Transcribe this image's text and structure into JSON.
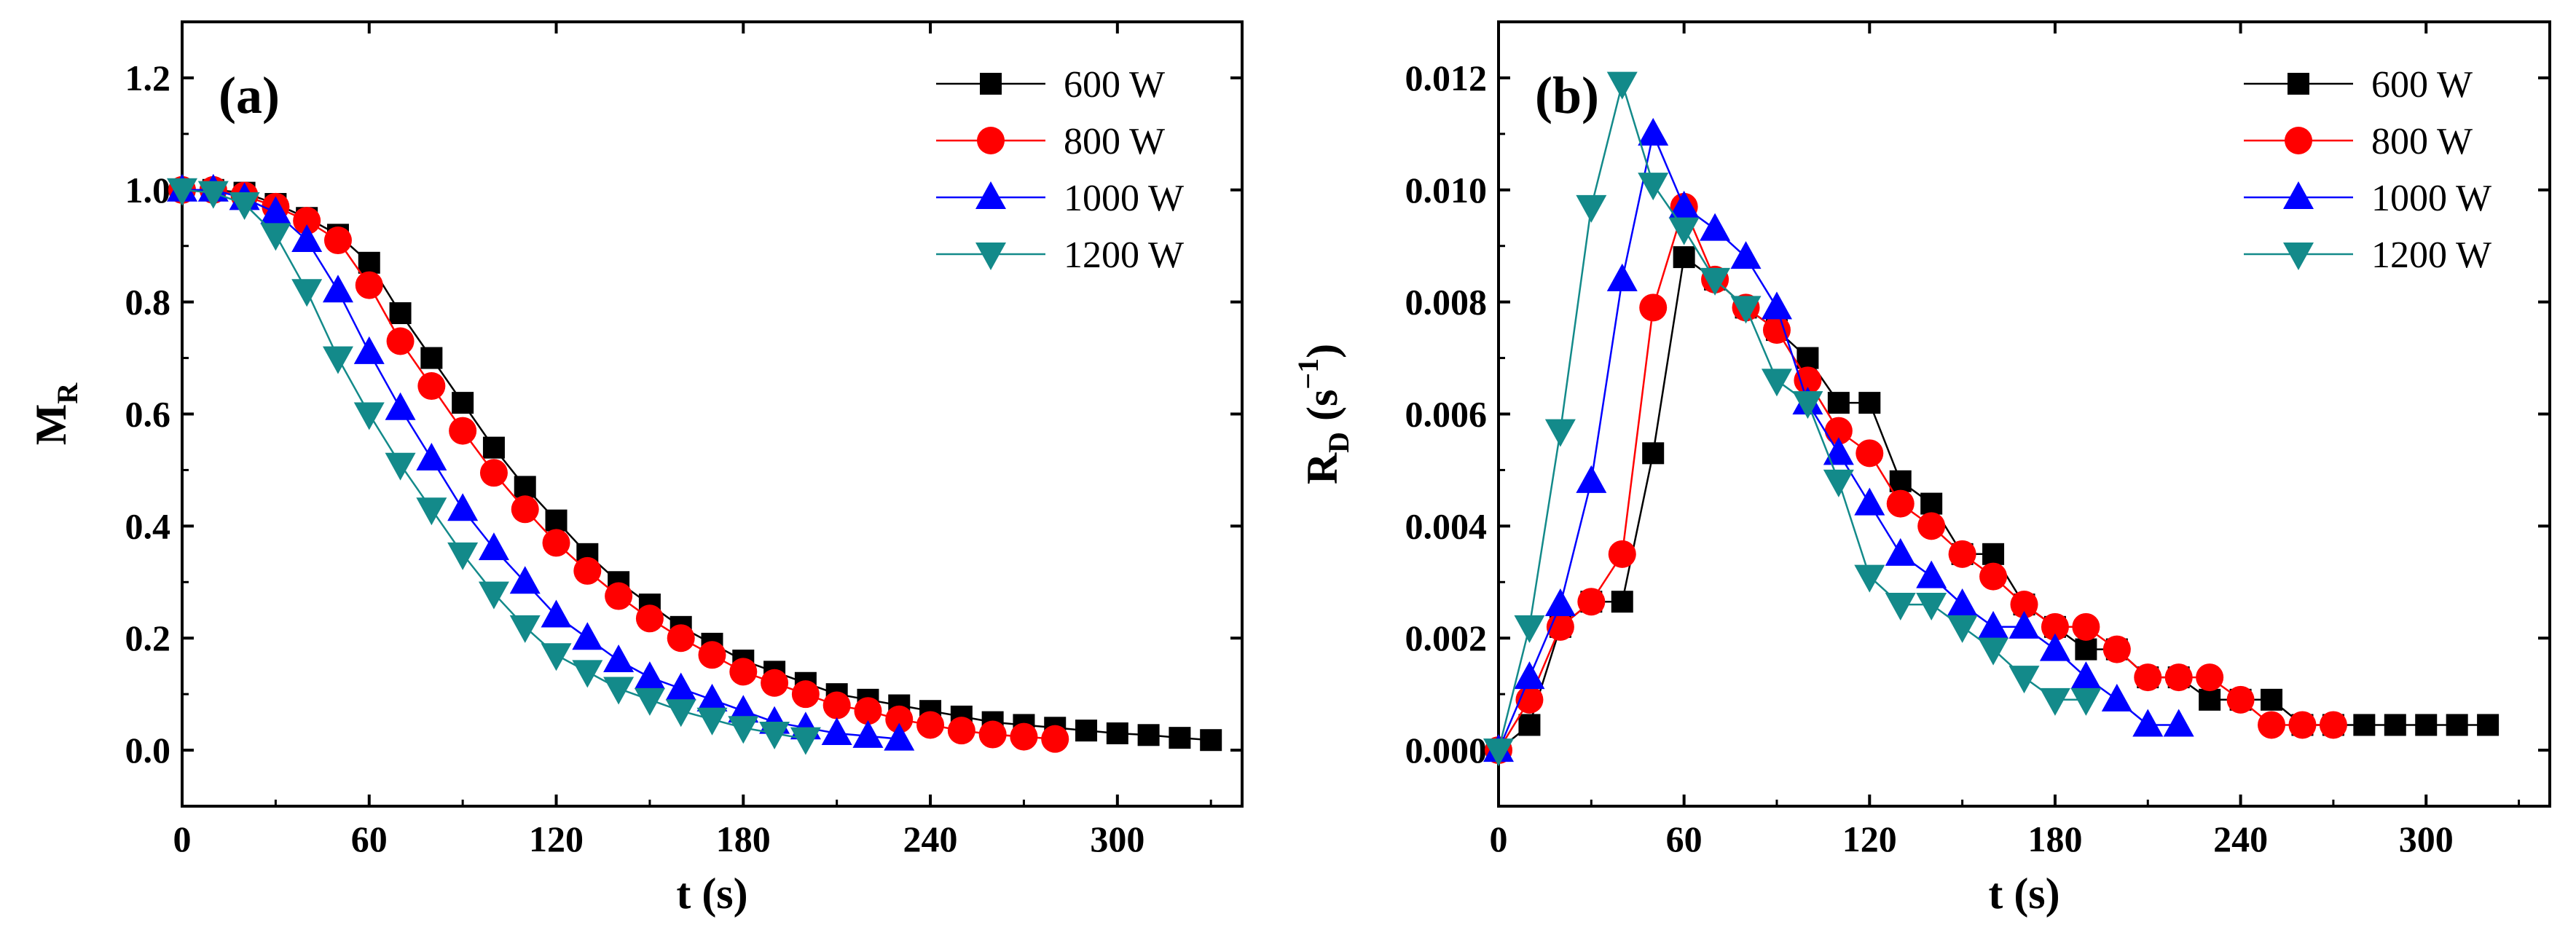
{
  "chart_data": [
    {
      "panel": "(a)",
      "type": "line",
      "xlabel": "t (s)",
      "ylabel": {
        "main": "M",
        "sub": "R"
      },
      "xlim": [
        0,
        340
      ],
      "ylim": [
        -0.1,
        1.3
      ],
      "xticks": [
        0,
        60,
        120,
        180,
        240,
        300
      ],
      "yticks": [
        0.0,
        0.2,
        0.4,
        0.6,
        0.8,
        1.0,
        1.2
      ],
      "ytick_labels": [
        "0.0",
        "0.2",
        "0.4",
        "0.6",
        "0.8",
        "1.0",
        "1.2"
      ],
      "legend_position": "top-right",
      "series": [
        {
          "name": "600 W",
          "color": "#000000",
          "marker": "square",
          "x": [
            0,
            10,
            20,
            30,
            40,
            50,
            60,
            70,
            80,
            90,
            100,
            110,
            120,
            130,
            140,
            150,
            160,
            170,
            180,
            190,
            200,
            210,
            220,
            230,
            240,
            250,
            260,
            270,
            280,
            290,
            300,
            310,
            320,
            330
          ],
          "y": [
            1.0,
            1.0,
            0.995,
            0.975,
            0.95,
            0.92,
            0.87,
            0.78,
            0.7,
            0.62,
            0.54,
            0.47,
            0.41,
            0.35,
            0.3,
            0.26,
            0.22,
            0.19,
            0.16,
            0.14,
            0.12,
            0.1,
            0.09,
            0.08,
            0.07,
            0.06,
            0.05,
            0.045,
            0.04,
            0.035,
            0.03,
            0.027,
            0.022,
            0.018
          ]
        },
        {
          "name": "800 W",
          "color": "#ff0000",
          "marker": "circle",
          "x": [
            0,
            10,
            20,
            30,
            40,
            50,
            60,
            70,
            80,
            90,
            100,
            110,
            120,
            130,
            140,
            150,
            160,
            170,
            180,
            190,
            200,
            210,
            220,
            230,
            240,
            250,
            260,
            270,
            280
          ],
          "y": [
            1.0,
            1.0,
            0.99,
            0.97,
            0.945,
            0.91,
            0.83,
            0.73,
            0.65,
            0.57,
            0.495,
            0.43,
            0.37,
            0.32,
            0.275,
            0.235,
            0.2,
            0.17,
            0.14,
            0.12,
            0.1,
            0.08,
            0.07,
            0.055,
            0.045,
            0.035,
            0.028,
            0.024,
            0.02
          ]
        },
        {
          "name": "1000 W",
          "color": "#0000ff",
          "marker": "triangle-up",
          "x": [
            0,
            10,
            20,
            30,
            40,
            50,
            60,
            70,
            80,
            90,
            100,
            110,
            120,
            130,
            140,
            150,
            160,
            170,
            180,
            190,
            200,
            210,
            220,
            230
          ],
          "y": [
            1.0,
            1.0,
            0.985,
            0.96,
            0.91,
            0.82,
            0.71,
            0.61,
            0.52,
            0.43,
            0.36,
            0.3,
            0.24,
            0.2,
            0.16,
            0.13,
            0.11,
            0.09,
            0.07,
            0.05,
            0.04,
            0.03,
            0.025,
            0.02
          ]
        },
        {
          "name": "1200 W",
          "color": "#138a8a",
          "marker": "triangle-down",
          "x": [
            0,
            10,
            20,
            30,
            40,
            50,
            60,
            70,
            80,
            90,
            100,
            110,
            120,
            130,
            140,
            150,
            160,
            170,
            180,
            190,
            200
          ],
          "y": [
            1.0,
            0.995,
            0.975,
            0.92,
            0.82,
            0.7,
            0.6,
            0.51,
            0.43,
            0.35,
            0.28,
            0.22,
            0.17,
            0.14,
            0.11,
            0.09,
            0.07,
            0.055,
            0.04,
            0.03,
            0.02
          ]
        }
      ]
    },
    {
      "panel": "(b)",
      "type": "line",
      "xlabel": "t (s)",
      "ylabel": {
        "main": "R",
        "sub": "D",
        "unit_open": " (s",
        "unit_sup": "−1",
        "unit_close": ")"
      },
      "xlim": [
        0,
        340
      ],
      "ylim": [
        -0.001,
        0.013
      ],
      "xticks": [
        0,
        60,
        120,
        180,
        240,
        300
      ],
      "yticks": [
        0.0,
        0.002,
        0.004,
        0.006,
        0.008,
        0.01,
        0.012
      ],
      "ytick_labels": [
        "0.000",
        "0.002",
        "0.004",
        "0.006",
        "0.008",
        "0.010",
        "0.012"
      ],
      "legend_position": "top-right",
      "series": [
        {
          "name": "600 W",
          "color": "#000000",
          "marker": "square",
          "x": [
            0,
            10,
            20,
            30,
            40,
            50,
            60,
            70,
            80,
            90,
            100,
            110,
            120,
            130,
            140,
            150,
            160,
            170,
            180,
            190,
            200,
            210,
            220,
            230,
            240,
            250,
            260,
            270,
            280,
            290,
            300,
            310,
            320
          ],
          "y": [
            0,
            0.00045,
            0.0022,
            0.00265,
            0.00265,
            0.0053,
            0.0088,
            0.0084,
            0.0079,
            0.0075,
            0.007,
            0.0062,
            0.0062,
            0.0048,
            0.0044,
            0.0035,
            0.0035,
            0.0026,
            0.0022,
            0.0018,
            0.0018,
            0.0013,
            0.0013,
            0.0009,
            0.0009,
            0.0009,
            0.00045,
            0.00045,
            0.00045,
            0.00045,
            0.00045,
            0.00045,
            0.00045
          ]
        },
        {
          "name": "800 W",
          "color": "#ff0000",
          "marker": "circle",
          "x": [
            0,
            10,
            20,
            30,
            40,
            50,
            60,
            70,
            80,
            90,
            100,
            110,
            120,
            130,
            140,
            150,
            160,
            170,
            180,
            190,
            200,
            210,
            220,
            230,
            240,
            250,
            260,
            270
          ],
          "y": [
            0,
            0.0009,
            0.0022,
            0.00265,
            0.0035,
            0.0079,
            0.0097,
            0.0084,
            0.0079,
            0.0075,
            0.0066,
            0.0057,
            0.0053,
            0.0044,
            0.004,
            0.0035,
            0.0031,
            0.0026,
            0.0022,
            0.0022,
            0.0018,
            0.0013,
            0.0013,
            0.0013,
            0.0009,
            0.00045,
            0.00045,
            0.00045
          ]
        },
        {
          "name": "1000 W",
          "color": "#0000ff",
          "marker": "triangle-up",
          "x": [
            0,
            10,
            20,
            30,
            40,
            50,
            60,
            70,
            80,
            90,
            100,
            110,
            120,
            130,
            140,
            150,
            160,
            170,
            180,
            190,
            200,
            210,
            220
          ],
          "y": [
            0,
            0.0013,
            0.0026,
            0.0048,
            0.0084,
            0.011,
            0.0097,
            0.0093,
            0.0088,
            0.0079,
            0.0062,
            0.0053,
            0.0044,
            0.0035,
            0.0031,
            0.0026,
            0.0022,
            0.0022,
            0.0018,
            0.0013,
            0.0009,
            0.00045,
            0.00045
          ]
        },
        {
          "name": "1200 W",
          "color": "#138a8a",
          "marker": "triangle-down",
          "x": [
            0,
            10,
            20,
            30,
            40,
            50,
            60,
            70,
            80,
            90,
            100,
            110,
            120,
            130,
            140,
            150,
            160,
            170,
            180,
            190
          ],
          "y": [
            0,
            0.0022,
            0.0057,
            0.0097,
            0.0119,
            0.0101,
            0.0093,
            0.0084,
            0.0079,
            0.0066,
            0.0062,
            0.0048,
            0.0031,
            0.0026,
            0.0026,
            0.0022,
            0.0018,
            0.0013,
            0.0009,
            0.0009
          ]
        }
      ]
    }
  ]
}
